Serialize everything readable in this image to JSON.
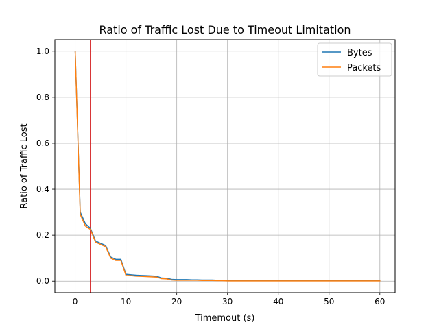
{
  "chart_data": {
    "type": "line",
    "title": "Ratio of Traffic Lost Due to Timeout Limitation",
    "xlabel": "Timemout (s)",
    "ylabel": "Ratio of Traffic Lost",
    "xlim": [
      -4,
      63
    ],
    "ylim": [
      -0.05,
      1.05
    ],
    "xticks": [
      0,
      10,
      20,
      30,
      40,
      50,
      60
    ],
    "yticks": [
      0.0,
      0.2,
      0.4,
      0.6,
      0.8,
      1.0
    ],
    "xtick_labels": [
      "0",
      "10",
      "20",
      "30",
      "40",
      "50",
      "60"
    ],
    "ytick_labels": [
      "0.0",
      "0.2",
      "0.4",
      "0.6",
      "0.8",
      "1.0"
    ],
    "grid": true,
    "legend_position": "top-right",
    "vline": {
      "x": 3,
      "color": "#d62728"
    },
    "series": [
      {
        "name": "Bytes",
        "color": "#1f77b4",
        "x": [
          0,
          1,
          2,
          3,
          4,
          5,
          6,
          7,
          8,
          9,
          10,
          11,
          12,
          13,
          14,
          15,
          16,
          17,
          18,
          19,
          20,
          21,
          22,
          23,
          24,
          25,
          26,
          27,
          28,
          29,
          30,
          31,
          32,
          33,
          34,
          35,
          36,
          37,
          38,
          39,
          40,
          41,
          42,
          43,
          44,
          45,
          46,
          47,
          48,
          49,
          50,
          51,
          52,
          53,
          54,
          55,
          56,
          57,
          58,
          59,
          60
        ],
        "y": [
          1.0,
          0.3,
          0.25,
          0.23,
          0.175,
          0.165,
          0.155,
          0.105,
          0.095,
          0.095,
          0.03,
          0.028,
          0.026,
          0.025,
          0.024,
          0.023,
          0.022,
          0.014,
          0.013,
          0.008,
          0.007,
          0.007,
          0.007,
          0.006,
          0.006,
          0.005,
          0.005,
          0.005,
          0.004,
          0.004,
          0.003,
          0.002,
          0.002,
          0.002,
          0.002,
          0.002,
          0.002,
          0.002,
          0.002,
          0.002,
          0.002,
          0.002,
          0.002,
          0.002,
          0.002,
          0.002,
          0.002,
          0.002,
          0.002,
          0.002,
          0.002,
          0.002,
          0.002,
          0.002,
          0.002,
          0.002,
          0.002,
          0.002,
          0.002,
          0.002,
          0.002
        ]
      },
      {
        "name": "Packets",
        "color": "#ff7f0e",
        "x": [
          0,
          1,
          2,
          3,
          4,
          5,
          6,
          7,
          8,
          9,
          10,
          11,
          12,
          13,
          14,
          15,
          16,
          17,
          18,
          19,
          20,
          21,
          22,
          23,
          24,
          25,
          26,
          27,
          28,
          29,
          30,
          31,
          32,
          33,
          34,
          35,
          36,
          37,
          38,
          39,
          40,
          41,
          42,
          43,
          44,
          45,
          46,
          47,
          48,
          49,
          50,
          51,
          52,
          53,
          54,
          55,
          56,
          57,
          58,
          59,
          60
        ],
        "y": [
          1.0,
          0.29,
          0.24,
          0.225,
          0.17,
          0.16,
          0.15,
          0.1,
          0.09,
          0.09,
          0.025,
          0.024,
          0.022,
          0.021,
          0.02,
          0.019,
          0.018,
          0.011,
          0.01,
          0.005,
          0.004,
          0.004,
          0.004,
          0.004,
          0.004,
          0.003,
          0.003,
          0.003,
          0.002,
          0.002,
          0.001,
          0.001,
          0.001,
          0.001,
          0.001,
          0.001,
          0.001,
          0.001,
          0.001,
          0.001,
          0.001,
          0.001,
          0.001,
          0.001,
          0.001,
          0.001,
          0.001,
          0.001,
          0.001,
          0.001,
          0.001,
          0.001,
          0.001,
          0.001,
          0.001,
          0.001,
          0.001,
          0.001,
          0.001,
          0.001,
          0.001
        ]
      }
    ]
  }
}
